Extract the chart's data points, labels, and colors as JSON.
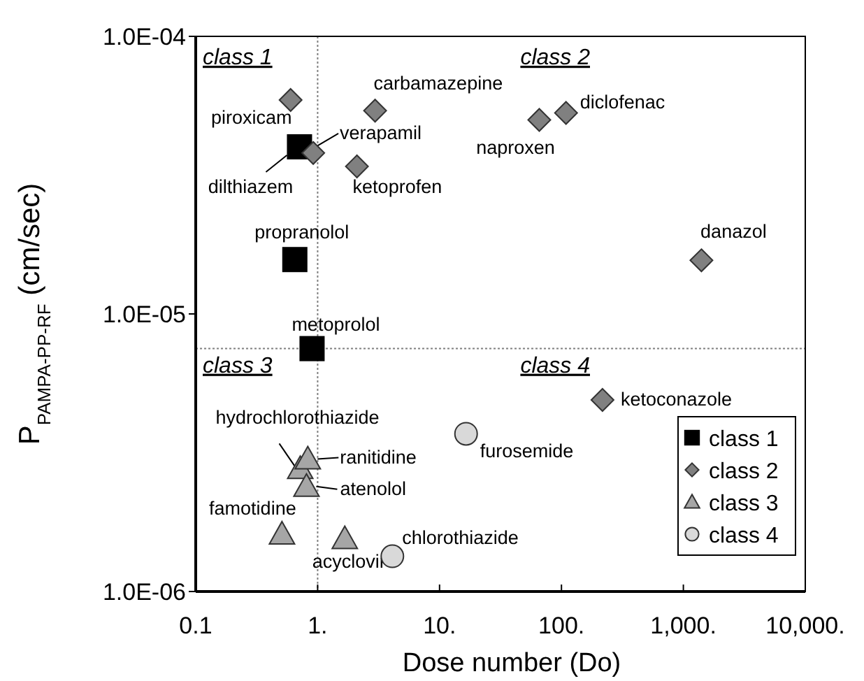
{
  "chart_data": {
    "type": "scatter",
    "log": "xy",
    "xlabel": "Dose number (Do)",
    "ylabel": "P$_{PAMPA-PP-RF}$ (cm/sec)",
    "xlim": [
      0.1,
      10000
    ],
    "ylim": [
      1e-06,
      0.0001
    ],
    "xticks": [
      {
        "value": 0.1,
        "label": "0.1"
      },
      {
        "value": 1,
        "label": "1."
      },
      {
        "value": 10,
        "label": "10."
      },
      {
        "value": 100,
        "label": "100."
      },
      {
        "value": 1000,
        "label": "1,000."
      },
      {
        "value": 10000,
        "label": "10,000."
      }
    ],
    "yticks": [
      {
        "value": 1e-06,
        "label": "1.0E-06"
      },
      {
        "value": 1e-05,
        "label": "1.0E-05"
      },
      {
        "value": 0.0001,
        "label": "1.0E-04"
      }
    ],
    "grid": false,
    "legend": "bottom right",
    "ref_lines": [
      {
        "axis": "x",
        "value": 1,
        "line_style": "dotted",
        "color": "#808080"
      },
      {
        "axis": "y",
        "value": 7.5e-06,
        "line_style": "dotted",
        "color": "#808080"
      }
    ],
    "series": [
      {
        "name": "class 1",
        "color": "#000000",
        "marker": "square",
        "x": [
          0.71,
          0.65,
          0.9
        ],
        "values": [
          4e-05,
          1.57e-05,
          7.5e-06
        ]
      },
      {
        "name": "class 2",
        "color": "#808080",
        "marker": "diamond",
        "x": [
          0.6,
          0.92,
          2.96,
          2.1,
          65.8,
          109,
          1406,
          217
        ],
        "values": [
          5.9e-05,
          3.8e-05,
          5.4e-05,
          3.4e-05,
          5e-05,
          5.3e-05,
          1.56e-05,
          4.9e-06
        ]
      },
      {
        "name": "class 3",
        "color": "#a6a6a6",
        "marker": "triangle",
        "x": [
          0.72,
          0.83,
          0.81,
          0.51,
          1.67
        ],
        "values": [
          2.77e-06,
          3e-06,
          2.39e-06,
          1.61e-06,
          1.55e-06
        ]
      },
      {
        "name": "class 4",
        "color": "#d9d9d9",
        "marker": "circle",
        "x": [
          16.5,
          4.1
        ],
        "values": [
          3.7e-06,
          1.34e-06
        ]
      }
    ],
    "annotations": [
      "class 1",
      "class 2",
      "class 3",
      "class 4",
      {
        "text": "dilthiazem",
        "x": 0.71,
        "y": 4e-05
      },
      {
        "text": "propranolol",
        "x": 0.65,
        "y": 1.57e-05
      },
      {
        "text": "metoprolol",
        "x": 0.9,
        "y": 7.5e-06
      },
      {
        "text": "piroxicam",
        "x": 0.6,
        "y": 5.9e-05
      },
      {
        "text": "verapamil",
        "x": 0.92,
        "y": 3.8e-05
      },
      {
        "text": "carbamazepine",
        "x": 2.96,
        "y": 5.4e-05
      },
      {
        "text": "ketoprofen",
        "x": 2.1,
        "y": 3.4e-05
      },
      {
        "text": "naproxen",
        "x": 65.8,
        "y": 5e-05
      },
      {
        "text": "diclofenac",
        "x": 109,
        "y": 5.3e-05
      },
      {
        "text": "danazol",
        "x": 1406,
        "y": 1.56e-05
      },
      {
        "text": "ketoconazole",
        "x": 217,
        "y": 4.9e-06
      },
      {
        "text": "hydrochlorothiazide",
        "x": 0.72,
        "y": 2.77e-06
      },
      {
        "text": "ranitidine",
        "x": 0.83,
        "y": 3e-06
      },
      {
        "text": "atenolol",
        "x": 0.81,
        "y": 2.39e-06
      },
      {
        "text": "famotidine",
        "x": 0.51,
        "y": 1.61e-06
      },
      {
        "text": "acyclovir",
        "x": 1.67,
        "y": 1.55e-06
      },
      {
        "text": "furosemide",
        "x": 16.5,
        "y": 3.7e-06
      },
      {
        "text": "chlorothiazide",
        "x": 4.1,
        "y": 1.34e-06
      }
    ]
  }
}
